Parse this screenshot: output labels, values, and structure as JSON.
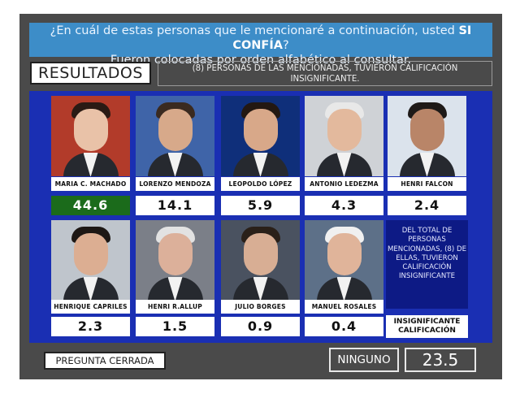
{
  "question": {
    "line1_pre": "¿En cuál de estas personas que le mencionaré a continuación, usted ",
    "line1_bold": "SI CONFÍA",
    "line1_post": "?",
    "line2": "Fueron colocadas por orden alfabético al consultar."
  },
  "results_label": "RESULTADOS",
  "note": "(8) PERSONAS DE LAS MENCIONADAS,  TUVIERON CALIFICACIÓN INSIGNIFICANTE.",
  "people": [
    {
      "name": "MARIA C. MACHADO",
      "score": "44.6",
      "bg": "#b23b2a",
      "skin": "#e9c2a8",
      "hair": "#2a1a14"
    },
    {
      "name": "LORENZO MENDOZA",
      "score": "14.1",
      "bg": "#3f64a8",
      "skin": "#d7a98a",
      "hair": "#3a2a20"
    },
    {
      "name": "LEOPOLDO LÓPEZ",
      "score": "5.9",
      "bg": "#0f2f7a",
      "skin": "#d8a889",
      "hair": "#231812"
    },
    {
      "name": "ANTONIO LEDEZMA",
      "score": "4.3",
      "bg": "#cfd2d6",
      "skin": "#e3b99d",
      "hair": "#e8e8e8"
    },
    {
      "name": "HENRI FALCON",
      "score": "2.4",
      "bg": "#dbe3ec",
      "skin": "#b98568",
      "hair": "#1e1a18"
    },
    {
      "name": "HENRIQUE CAPRILES",
      "score": "2.3",
      "bg": "#bfc5cc",
      "skin": "#dcae92",
      "hair": "#1d1714"
    },
    {
      "name": "HENRI R.ALLUP",
      "score": "1.5",
      "bg": "#7b7f88",
      "skin": "#dcb09a",
      "hair": "#e2e2e2"
    },
    {
      "name": "JULIO BORGES",
      "score": "0.9",
      "bg": "#4a5260",
      "skin": "#d8ae94",
      "hair": "#2a2019"
    },
    {
      "name": "MANUEL ROSALES",
      "score": "0.4",
      "bg": "#5d7088",
      "skin": "#e0b49a",
      "hair": "#f0f0f0"
    }
  ],
  "info_text": "DEL TOTAL DE PERSONAS MENCIONADAS, (8) DE ELLAS, TUVIERON CALIFICACIÓN INSIGNIFICANTE",
  "insignificant_label": "INSIGNIFICANTE CALIFICACIÓN",
  "closed_question": "PREGUNTA CERRADA",
  "none_label": "NINGUNO",
  "none_value": "23.5",
  "colors": {
    "header_blue": "#3d8dc8",
    "grid_blue": "#1a2fb3",
    "highlight_green": "#1b6b1b",
    "board_grey": "#4a4a4a"
  }
}
